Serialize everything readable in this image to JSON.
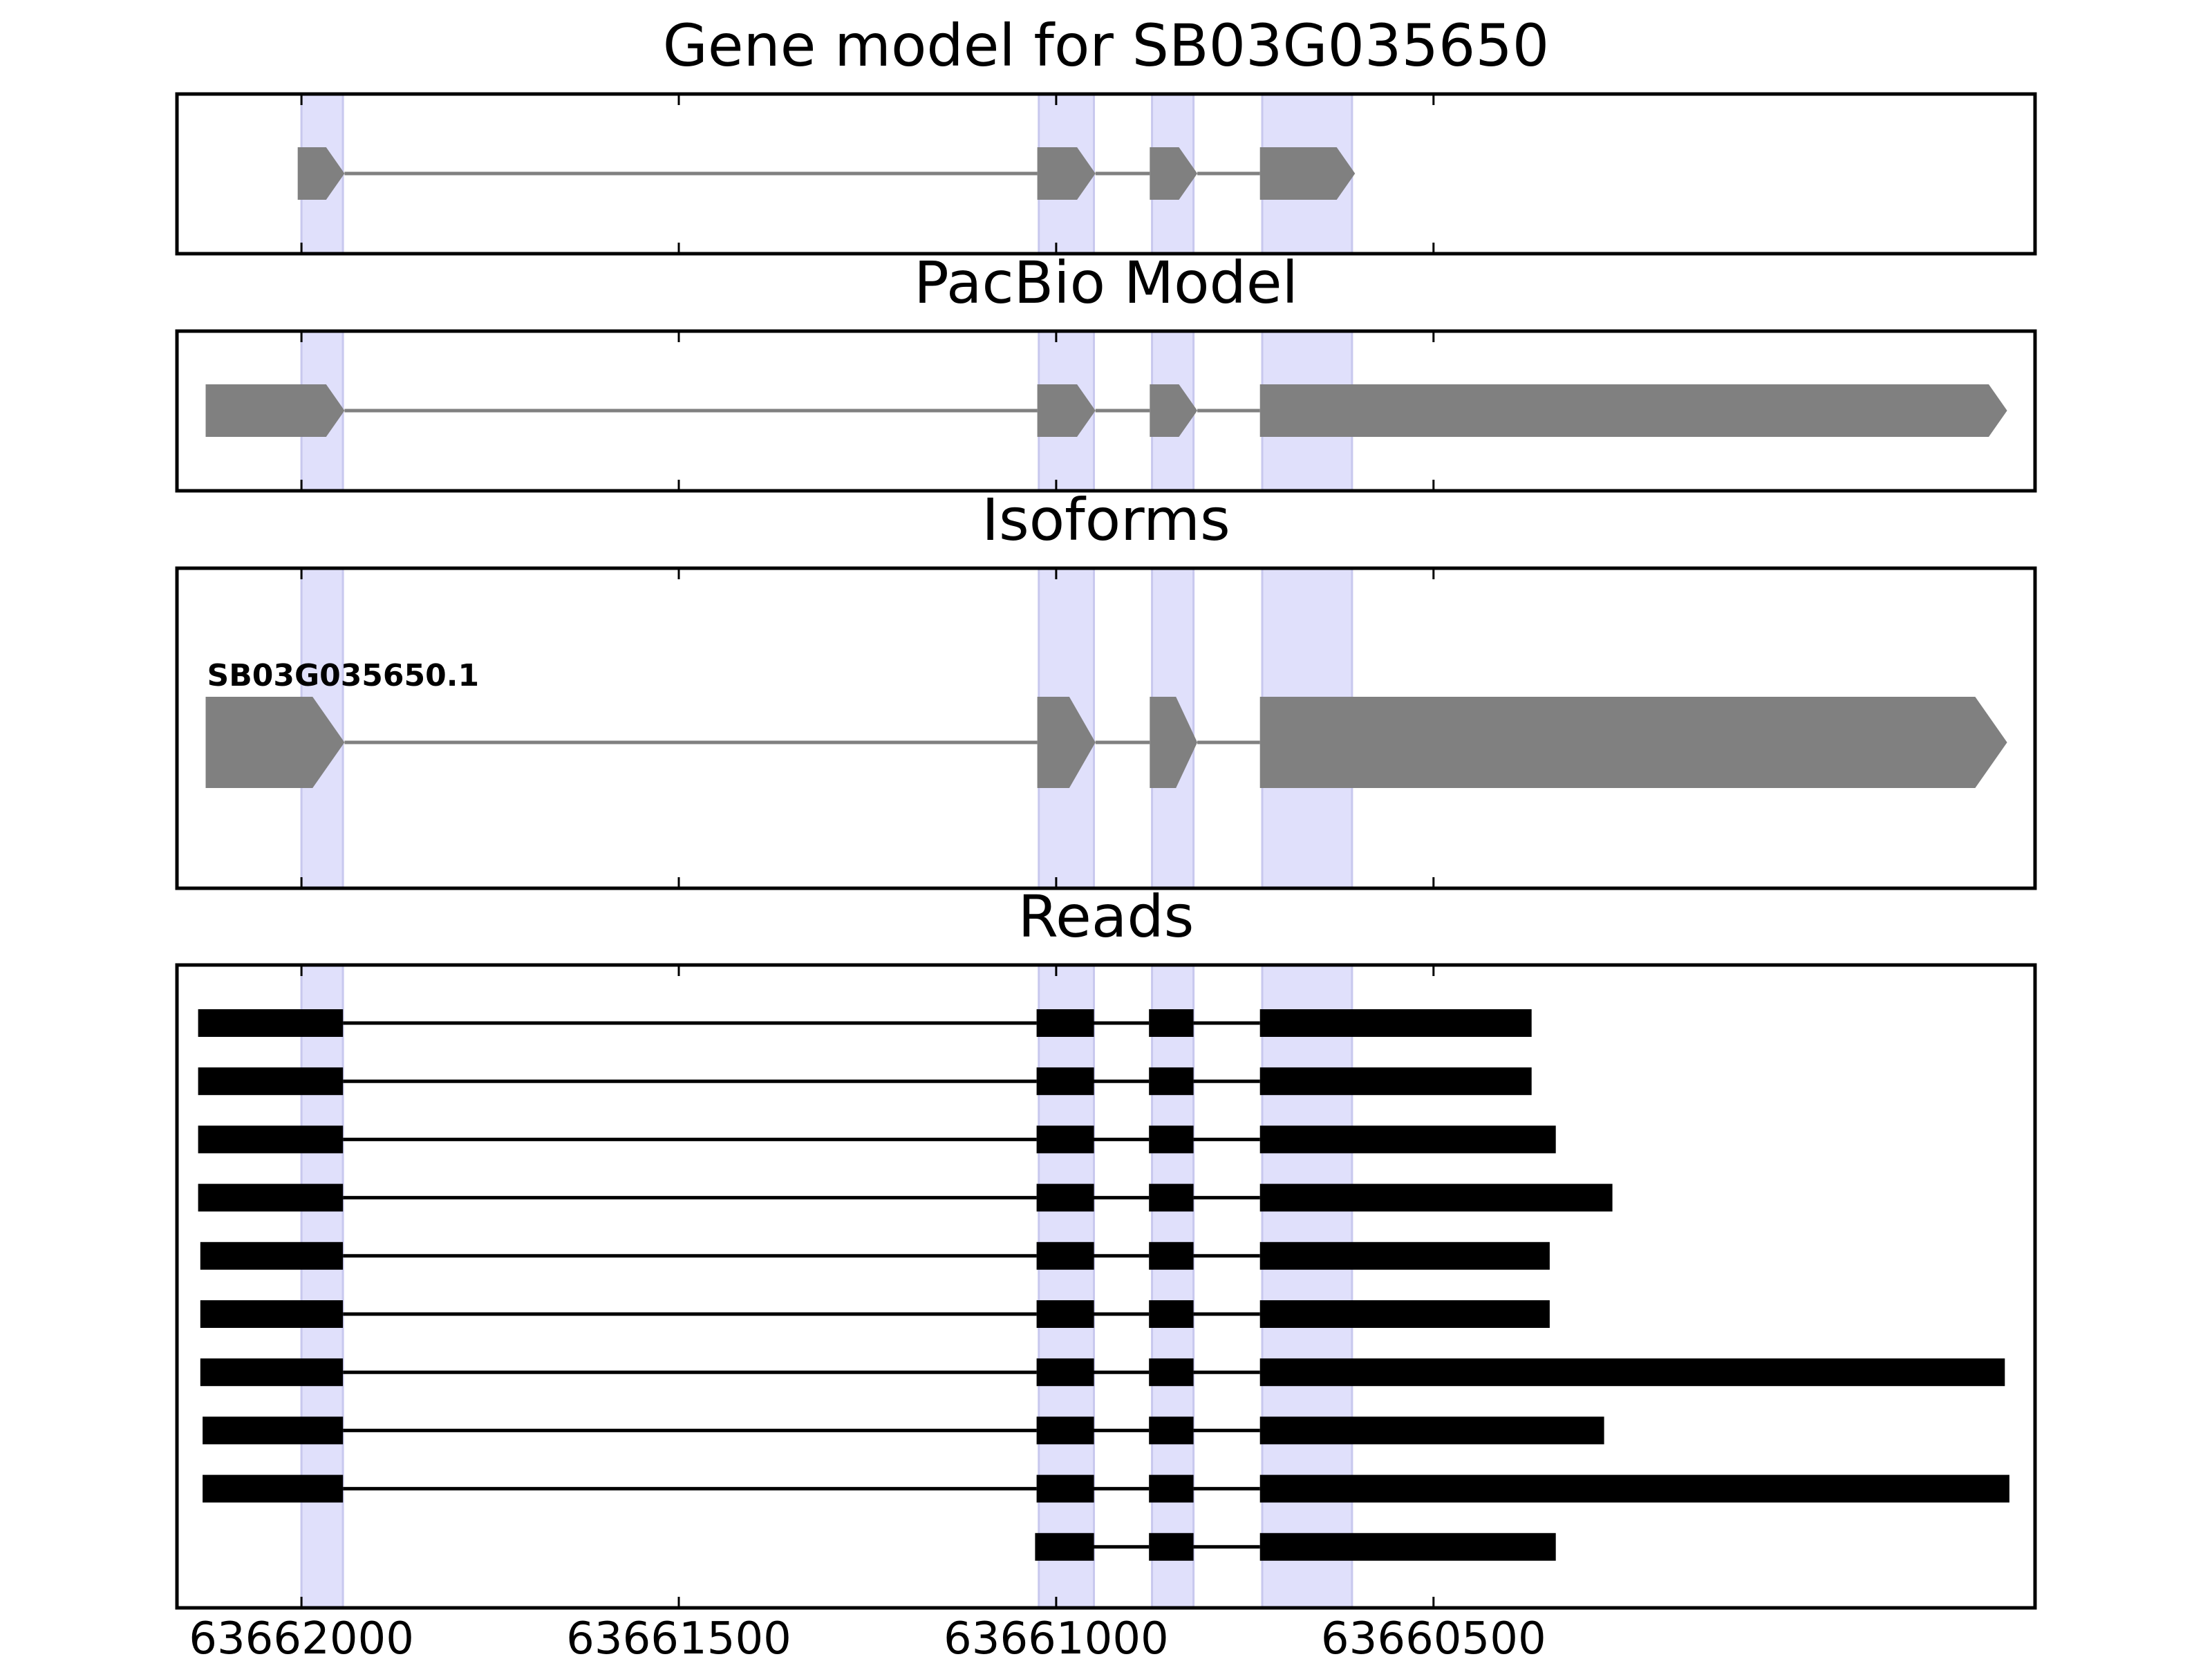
{
  "colors": {
    "feature_fill": "#808080",
    "intron_line": "#808080",
    "read_color": "#000000",
    "highlight": "#e0e0fb",
    "frame": "#000000"
  },
  "chart_data": {
    "type": "gene_model_tracks",
    "x_axis": {
      "direction": "reversed",
      "range": [
        63662165,
        63659703
      ],
      "ticks": [
        63662000,
        63661500,
        63661000,
        63660500
      ],
      "tick_labels": [
        "63662000",
        "63661500",
        "63661000",
        "63660500"
      ]
    },
    "highlighted_regions": [
      [
        63662000,
        63661945
      ],
      [
        63661023,
        63660950
      ],
      [
        63660873,
        63660818
      ],
      [
        63660727,
        63660608
      ]
    ],
    "panels": [
      {
        "title": "Gene model for SB03G035650",
        "features": [
          {
            "exons": [
              [
                63662005,
                63661943
              ],
              [
                63661025,
                63660948
              ],
              [
                63660876,
                63660813
              ],
              [
                63660730,
                63660604
              ]
            ],
            "strand": "-"
          }
        ]
      },
      {
        "title": "PacBio Model",
        "features": [
          {
            "exons": [
              [
                63662127,
                63661943
              ],
              [
                63661025,
                63660948
              ],
              [
                63660876,
                63660813
              ],
              [
                63660730,
                63659740
              ]
            ],
            "strand": "-"
          }
        ]
      },
      {
        "title": "Isoforms",
        "features": [
          {
            "label": "SB03G035650.1",
            "exons": [
              [
                63662127,
                63661943
              ],
              [
                63661025,
                63660948
              ],
              [
                63660876,
                63660813
              ],
              [
                63660730,
                63659740
              ]
            ],
            "strand": "-"
          }
        ]
      },
      {
        "title": "Reads",
        "reads": [
          {
            "exons": [
              [
                63662137,
                63661945
              ],
              [
                63661026,
                63660950
              ],
              [
                63660877,
                63660818
              ],
              [
                63660730,
                63660370
              ]
            ]
          },
          {
            "exons": [
              [
                63662137,
                63661945
              ],
              [
                63661026,
                63660950
              ],
              [
                63660877,
                63660818
              ],
              [
                63660730,
                63660370
              ]
            ]
          },
          {
            "exons": [
              [
                63662137,
                63661945
              ],
              [
                63661026,
                63660950
              ],
              [
                63660877,
                63660818
              ],
              [
                63660730,
                63660338
              ]
            ]
          },
          {
            "exons": [
              [
                63662137,
                63661945
              ],
              [
                63661026,
                63660950
              ],
              [
                63660877,
                63660818
              ],
              [
                63660730,
                63660263
              ]
            ]
          },
          {
            "exons": [
              [
                63662134,
                63661945
              ],
              [
                63661026,
                63660950
              ],
              [
                63660877,
                63660818
              ],
              [
                63660730,
                63660346
              ]
            ]
          },
          {
            "exons": [
              [
                63662134,
                63661945
              ],
              [
                63661026,
                63660950
              ],
              [
                63660877,
                63660818
              ],
              [
                63660730,
                63660346
              ]
            ]
          },
          {
            "exons": [
              [
                63662134,
                63661945
              ],
              [
                63661026,
                63660950
              ],
              [
                63660877,
                63660818
              ],
              [
                63660730,
                63659743
              ]
            ]
          },
          {
            "exons": [
              [
                63662131,
                63661945
              ],
              [
                63661026,
                63660950
              ],
              [
                63660877,
                63660818
              ],
              [
                63660730,
                63660274
              ]
            ]
          },
          {
            "exons": [
              [
                63662131,
                63661945
              ],
              [
                63661026,
                63660950
              ],
              [
                63660877,
                63660818
              ],
              [
                63660730,
                63659737
              ]
            ]
          },
          {
            "exons": [
              [
                63661028,
                63660950
              ],
              [
                63660877,
                63660818
              ],
              [
                63660730,
                63660338
              ]
            ]
          }
        ]
      }
    ]
  }
}
